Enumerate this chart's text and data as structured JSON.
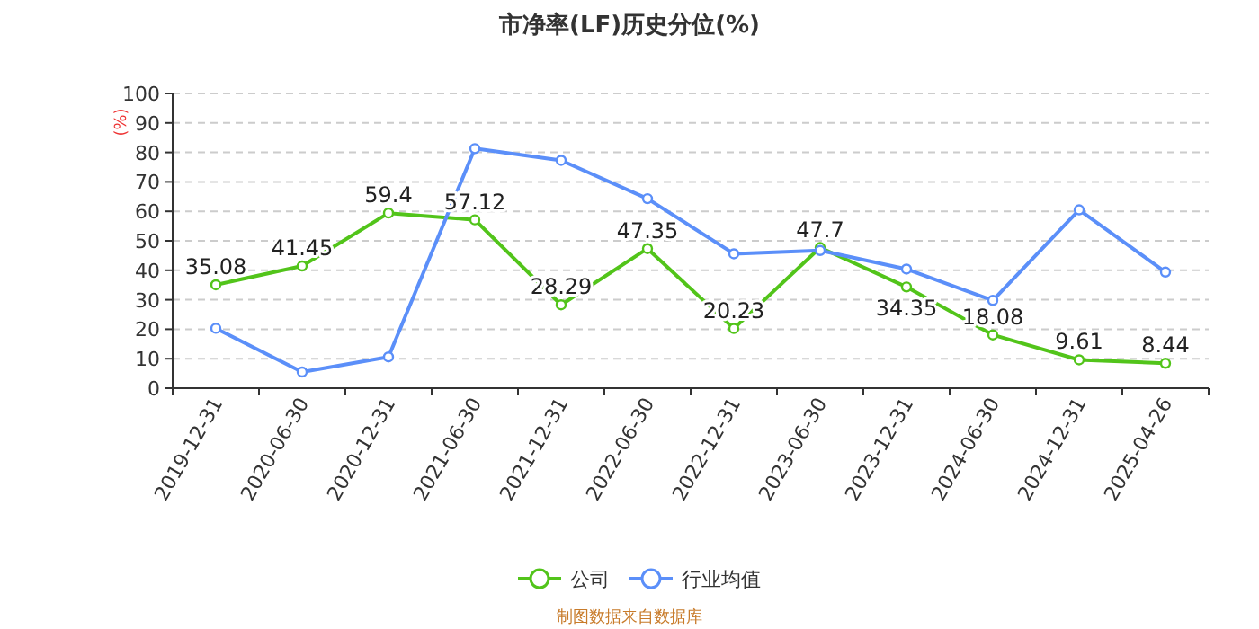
{
  "chart_data": {
    "type": "line",
    "title": "市净率(LF)历史分位(%)",
    "ylabel": "(%)",
    "categories": [
      "2019-12-31",
      "2020-06-30",
      "2020-12-31",
      "2021-06-30",
      "2021-12-31",
      "2022-06-30",
      "2022-12-31",
      "2023-06-30",
      "2023-12-31",
      "2024-06-30",
      "2024-12-31",
      "2025-04-26"
    ],
    "series": [
      {
        "name": "公司",
        "color": "#52c41a",
        "values": [
          35.08,
          41.45,
          59.4,
          57.12,
          28.29,
          47.35,
          20.23,
          47.7,
          34.35,
          18.08,
          9.61,
          8.44
        ],
        "data_labels": true
      },
      {
        "name": "行业均值",
        "color": "#5b8ff9",
        "values": [
          20.3,
          5.5,
          10.6,
          81.3,
          77.3,
          64.3,
          45.6,
          46.7,
          40.4,
          29.8,
          60.5,
          39.4
        ]
      }
    ],
    "ylim": [
      0,
      100
    ],
    "yticks": [
      0,
      10,
      20,
      30,
      40,
      50,
      60,
      70,
      80,
      90,
      100
    ],
    "grid": "y",
    "legend": "bottom",
    "marker": "circle",
    "line_style": "solid",
    "annotations": [
      "制图数据来自数据库"
    ]
  }
}
